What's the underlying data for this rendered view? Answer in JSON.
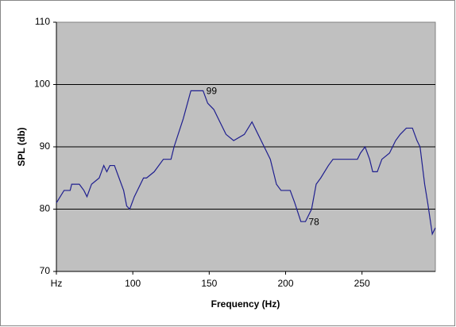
{
  "chart_data": {
    "type": "line",
    "x_label": "Frequency (Hz)",
    "y_label": "SPL (db)",
    "x": [
      50,
      55,
      59,
      60,
      65,
      68,
      70,
      73,
      78,
      81,
      83,
      85,
      88,
      91,
      94,
      96,
      98,
      101,
      107,
      109,
      114,
      120,
      125,
      127,
      133,
      138,
      146,
      149,
      153,
      157,
      161,
      166,
      173,
      178,
      182,
      186,
      190,
      194,
      197,
      203,
      206,
      210,
      213,
      217,
      220,
      223,
      228,
      231,
      242,
      247,
      249,
      252,
      255,
      257,
      260,
      263,
      268,
      272,
      275,
      279,
      283,
      286,
      288,
      291,
      293,
      296,
      298
    ],
    "values": [
      81,
      83,
      83,
      84,
      84,
      83,
      82,
      84,
      85,
      87,
      86,
      87,
      87,
      85,
      83,
      80.5,
      80,
      82,
      85,
      85,
      86,
      88,
      88,
      90,
      94.5,
      99,
      99,
      97,
      96,
      94,
      92,
      91,
      92,
      94,
      92,
      90,
      88,
      84,
      83,
      83,
      81,
      78,
      78,
      80,
      84,
      85,
      87,
      88,
      88,
      88,
      89,
      90,
      88,
      86,
      86,
      88,
      89,
      91,
      92,
      93,
      93,
      91,
      90,
      84,
      81,
      76,
      77
    ],
    "color": "#1f1f8f",
    "annotations": [
      {
        "x": 146,
        "value": 99
      },
      {
        "x": 213,
        "value": 78
      }
    ],
    "xlim": [
      50,
      298
    ],
    "xticks": [
      {
        "value": 50,
        "label": "Hz"
      },
      100,
      150,
      200,
      250
    ],
    "ylim": [
      70,
      110
    ],
    "yticks": [
      70,
      80,
      90,
      100,
      110
    ],
    "grid": true
  }
}
